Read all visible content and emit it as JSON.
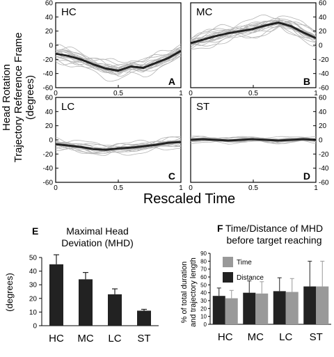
{
  "figure": {
    "ylabel_line1": "Head Rotation",
    "ylabel_line2": "Trajectory Reference Frame",
    "ylabel_line3": "(degrees)",
    "xlabel": "Rescaled Time"
  },
  "chart_data": [
    {
      "type": "line",
      "panel_label": "HC",
      "corner_letter": "A",
      "xlim": [
        0,
        1
      ],
      "ylim": [
        -60,
        60
      ],
      "xticks": [
        "0",
        "0.5",
        "1"
      ],
      "yticks": [
        "60",
        "40",
        "20",
        "0",
        "-20",
        "-40",
        "-60"
      ],
      "ytick_side": "left",
      "x": [
        0,
        0.1,
        0.2,
        0.3,
        0.4,
        0.5,
        0.6,
        0.7,
        0.8,
        0.9,
        1.0
      ],
      "mean_y": [
        -12,
        -15,
        -20,
        -27,
        -33,
        -36,
        -30,
        -32,
        -25,
        -18,
        -8
      ],
      "trace_spread": 12
    },
    {
      "type": "line",
      "panel_label": "MC",
      "corner_letter": "B",
      "xlim": [
        0,
        1
      ],
      "ylim": [
        -60,
        60
      ],
      "xticks": [
        "0",
        "0.5",
        "1"
      ],
      "yticks": [
        "60",
        "40",
        "20",
        "0",
        "-20",
        "-40",
        "-60"
      ],
      "ytick_side": "right",
      "x": [
        0,
        0.1,
        0.2,
        0.3,
        0.4,
        0.5,
        0.6,
        0.7,
        0.8,
        0.9,
        1.0
      ],
      "mean_y": [
        3,
        8,
        13,
        17,
        20,
        23,
        28,
        32,
        27,
        18,
        10
      ],
      "trace_spread": 12
    },
    {
      "type": "line",
      "panel_label": "LC",
      "corner_letter": "C",
      "xlim": [
        0,
        1
      ],
      "ylim": [
        -60,
        60
      ],
      "xticks": [
        "0",
        "0.5",
        "1"
      ],
      "yticks": [
        "60",
        "40",
        "20",
        "0",
        "-20",
        "-40",
        "-60"
      ],
      "ytick_side": "left",
      "x": [
        0,
        0.1,
        0.2,
        0.3,
        0.4,
        0.5,
        0.6,
        0.7,
        0.8,
        0.9,
        1.0
      ],
      "mean_y": [
        -6,
        -8,
        -10,
        -13,
        -14,
        -12,
        -11,
        -9,
        -7,
        -4,
        -3
      ],
      "trace_spread": 8
    },
    {
      "type": "line",
      "panel_label": "ST",
      "corner_letter": "D",
      "xlim": [
        0,
        1
      ],
      "ylim": [
        -60,
        60
      ],
      "xticks": [
        "0",
        "0.5",
        "1"
      ],
      "yticks": [
        "60",
        "40",
        "20",
        "0",
        "-20",
        "-40",
        "-60"
      ],
      "ytick_side": "right",
      "x": [
        0,
        0.1,
        0.2,
        0.3,
        0.4,
        0.5,
        0.6,
        0.7,
        0.8,
        0.9,
        1.0
      ],
      "mean_y": [
        0,
        1,
        0,
        -1,
        0,
        1,
        0,
        -1,
        0,
        1,
        0
      ],
      "trace_spread": 4
    },
    {
      "type": "bar",
      "panel_letter": "E",
      "title_line1": "Maximal Head",
      "title_line2": "Deviation (MHD)",
      "ylabel": "(degrees)",
      "ylim": [
        0,
        50
      ],
      "yticks": [
        "0",
        "10",
        "20",
        "30",
        "40",
        "50"
      ],
      "categories": [
        "HC",
        "MC",
        "LC",
        "ST"
      ],
      "values": [
        45,
        34,
        23,
        11
      ],
      "errors": [
        7,
        5,
        4,
        1
      ],
      "color": "#222222"
    },
    {
      "type": "bar",
      "panel_letter": "F",
      "title_line1": "Time/Distance of MHD",
      "title_line2": "before target reaching",
      "ylabel_line1": "% of total duration",
      "ylabel_line2": "and trajectory length",
      "ylim": [
        0,
        90
      ],
      "yticks": [
        "0",
        "10",
        "20",
        "30",
        "40",
        "50",
        "60",
        "70",
        "80",
        "90"
      ],
      "categories": [
        "HC",
        "MC",
        "LC",
        "ST"
      ],
      "series": [
        {
          "name": "Distance",
          "values": [
            36,
            40,
            42,
            48
          ],
          "errors": [
            10,
            15,
            17,
            32
          ],
          "color": "#222222"
        },
        {
          "name": "Time",
          "values": [
            33,
            39,
            41,
            48
          ],
          "errors": [
            10,
            15,
            17,
            32
          ],
          "color": "#999999"
        }
      ],
      "legend_order": [
        "Time",
        "Distance"
      ],
      "legend_position": "top-left"
    }
  ]
}
